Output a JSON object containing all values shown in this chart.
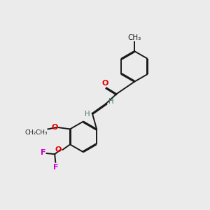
{
  "background_color": "#ebebeb",
  "bond_color": "#1a1a1a",
  "atom_colors": {
    "O": "#e00000",
    "F": "#cc00cc",
    "H": "#3a7878",
    "C": "#1a1a1a"
  },
  "figsize": [
    3.0,
    3.0
  ],
  "dpi": 100,
  "bond_lw": 1.4,
  "doff": 0.055,
  "fso": 8.0,
  "fsh": 7.2,
  "fsf": 8.0,
  "fsch3": 7.5
}
